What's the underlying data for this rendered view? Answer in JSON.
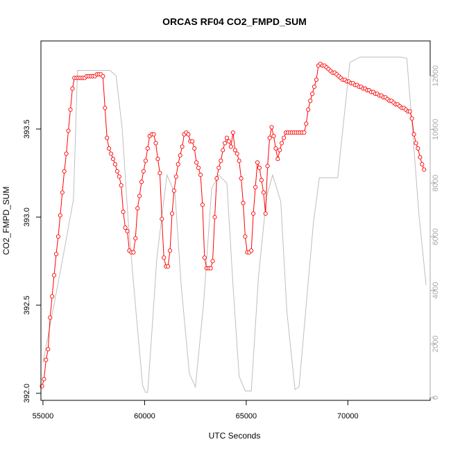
{
  "chart_data": {
    "type": "line",
    "title": "ORCAS RF04 CO2_FMPD_SUM",
    "xlabel": "UTC Seconds",
    "ylabel": "CO2_FMPD_SUM",
    "xlim": [
      54900,
      74050
    ],
    "ylim": [
      391.96,
      394.0
    ],
    "y2lim": [
      -100,
      13300
    ],
    "x_ticks": [
      55000,
      60000,
      65000,
      70000
    ],
    "x_tick_labels": [
      "55000",
      "60000",
      "65000",
      "70000"
    ],
    "y_ticks": [
      392.0,
      392.5,
      393.0,
      393.5
    ],
    "y_tick_labels": [
      "392.0",
      "392.5",
      "393.0",
      "393.5"
    ],
    "y2_ticks": [
      0,
      2000,
      4000,
      6000,
      8000,
      10000,
      12000
    ],
    "y2_tick_labels": [
      "0",
      "2000",
      "4000",
      "6000",
      "8000",
      "10000",
      "12000"
    ],
    "grid": false,
    "legend": "none",
    "colors": {
      "co2": "#ff0000",
      "altitude": "#bebebe",
      "axis": "#000000",
      "right_axis": "#a8a8a8"
    },
    "series": [
      {
        "role": "co2",
        "axis": "left",
        "style": "line+points",
        "points": [
          [
            54950,
            392.04
          ],
          [
            55050,
            392.08
          ],
          [
            55150,
            392.19
          ],
          [
            55250,
            392.25
          ],
          [
            55350,
            392.43
          ],
          [
            55450,
            392.55
          ],
          [
            55550,
            392.67
          ],
          [
            55650,
            392.79
          ],
          [
            55750,
            392.89
          ],
          [
            55850,
            393.01
          ],
          [
            55950,
            393.14
          ],
          [
            56050,
            393.26
          ],
          [
            56150,
            393.36
          ],
          [
            56250,
            393.49
          ],
          [
            56350,
            393.61
          ],
          [
            56450,
            393.73
          ],
          [
            56550,
            393.79
          ],
          [
            56650,
            393.79
          ],
          [
            56750,
            393.79
          ],
          [
            56850,
            393.79
          ],
          [
            56950,
            393.79
          ],
          [
            57050,
            393.79
          ],
          [
            57150,
            393.8
          ],
          [
            57250,
            393.8
          ],
          [
            57350,
            393.8
          ],
          [
            57450,
            393.8
          ],
          [
            57550,
            393.8
          ],
          [
            57650,
            393.81
          ],
          [
            57750,
            393.81
          ],
          [
            57850,
            393.81
          ],
          [
            57950,
            393.8
          ],
          [
            58050,
            393.62
          ],
          [
            58150,
            393.45
          ],
          [
            58250,
            393.39
          ],
          [
            58350,
            393.36
          ],
          [
            58450,
            393.33
          ],
          [
            58550,
            393.3
          ],
          [
            58650,
            393.26
          ],
          [
            58750,
            393.23
          ],
          [
            58850,
            393.18
          ],
          [
            58950,
            393.03
          ],
          [
            59050,
            392.94
          ],
          [
            59150,
            392.92
          ],
          [
            59250,
            392.81
          ],
          [
            59350,
            392.8
          ],
          [
            59450,
            392.8
          ],
          [
            59550,
            392.88
          ],
          [
            59650,
            393.05
          ],
          [
            59750,
            393.12
          ],
          [
            59850,
            393.2
          ],
          [
            59950,
            393.26
          ],
          [
            60050,
            393.32
          ],
          [
            60150,
            393.39
          ],
          [
            60250,
            393.46
          ],
          [
            60350,
            393.47
          ],
          [
            60450,
            393.47
          ],
          [
            60550,
            393.42
          ],
          [
            60650,
            393.33
          ],
          [
            60750,
            393.25
          ],
          [
            60850,
            392.99
          ],
          [
            60950,
            392.77
          ],
          [
            61050,
            392.72
          ],
          [
            61150,
            392.72
          ],
          [
            61250,
            392.81
          ],
          [
            61350,
            393.02
          ],
          [
            61450,
            393.15
          ],
          [
            61550,
            393.23
          ],
          [
            61650,
            393.3
          ],
          [
            61750,
            393.35
          ],
          [
            61850,
            393.4
          ],
          [
            61950,
            393.47
          ],
          [
            62050,
            393.48
          ],
          [
            62150,
            393.47
          ],
          [
            62250,
            393.43
          ],
          [
            62350,
            393.43
          ],
          [
            62450,
            393.39
          ],
          [
            62550,
            393.31
          ],
          [
            62650,
            393.28
          ],
          [
            62750,
            393.24
          ],
          [
            62850,
            393.07
          ],
          [
            62950,
            392.77
          ],
          [
            63050,
            392.71
          ],
          [
            63150,
            392.71
          ],
          [
            63250,
            392.71
          ],
          [
            63350,
            392.75
          ],
          [
            63450,
            393.0
          ],
          [
            63550,
            393.22
          ],
          [
            63650,
            393.28
          ],
          [
            63750,
            393.32
          ],
          [
            63850,
            393.38
          ],
          [
            63950,
            393.42
          ],
          [
            64050,
            393.45
          ],
          [
            64150,
            393.43
          ],
          [
            64250,
            393.4
          ],
          [
            64350,
            393.48
          ],
          [
            64450,
            393.38
          ],
          [
            64550,
            393.36
          ],
          [
            64650,
            393.32
          ],
          [
            64750,
            393.22
          ],
          [
            64850,
            393.08
          ],
          [
            64950,
            392.89
          ],
          [
            65050,
            392.8
          ],
          [
            65150,
            392.8
          ],
          [
            65250,
            392.81
          ],
          [
            65350,
            393.02
          ],
          [
            65450,
            393.17
          ],
          [
            65550,
            393.31
          ],
          [
            65650,
            393.28
          ],
          [
            65750,
            393.21
          ],
          [
            65850,
            393.14
          ],
          [
            65950,
            393.02
          ],
          [
            66050,
            393.29
          ],
          [
            66150,
            393.45
          ],
          [
            66250,
            393.51
          ],
          [
            66350,
            393.46
          ],
          [
            66450,
            393.39
          ],
          [
            66550,
            393.33
          ],
          [
            66650,
            393.38
          ],
          [
            66750,
            393.42
          ],
          [
            66850,
            393.45
          ],
          [
            66950,
            393.48
          ],
          [
            67050,
            393.48
          ],
          [
            67150,
            393.48
          ],
          [
            67250,
            393.48
          ],
          [
            67350,
            393.48
          ],
          [
            67450,
            393.48
          ],
          [
            67550,
            393.48
          ],
          [
            67650,
            393.48
          ],
          [
            67750,
            393.48
          ],
          [
            67850,
            393.48
          ],
          [
            67950,
            393.53
          ],
          [
            68050,
            393.61
          ],
          [
            68150,
            393.66
          ],
          [
            68250,
            393.7
          ],
          [
            68350,
            393.74
          ],
          [
            68450,
            393.78
          ],
          [
            68550,
            393.86
          ],
          [
            68650,
            393.87
          ],
          [
            68750,
            393.86
          ],
          [
            68850,
            393.86
          ],
          [
            68950,
            393.85
          ],
          [
            69050,
            393.84
          ],
          [
            69150,
            393.83
          ],
          [
            69250,
            393.82
          ],
          [
            69350,
            393.82
          ],
          [
            69450,
            393.81
          ],
          [
            69550,
            393.8
          ],
          [
            69650,
            393.79
          ],
          [
            69750,
            393.78
          ],
          [
            69850,
            393.78
          ],
          [
            69950,
            393.77
          ],
          [
            70050,
            393.77
          ],
          [
            70150,
            393.76
          ],
          [
            70250,
            393.76
          ],
          [
            70350,
            393.75
          ],
          [
            70450,
            393.75
          ],
          [
            70550,
            393.74
          ],
          [
            70650,
            393.74
          ],
          [
            70750,
            393.73
          ],
          [
            70850,
            393.73
          ],
          [
            70950,
            393.72
          ],
          [
            71050,
            393.72
          ],
          [
            71150,
            393.71
          ],
          [
            71250,
            393.71
          ],
          [
            71350,
            393.7
          ],
          [
            71450,
            393.7
          ],
          [
            71550,
            393.69
          ],
          [
            71650,
            393.69
          ],
          [
            71750,
            393.68
          ],
          [
            71850,
            393.68
          ],
          [
            71950,
            393.67
          ],
          [
            72050,
            393.66
          ],
          [
            72150,
            393.66
          ],
          [
            72250,
            393.65
          ],
          [
            72350,
            393.64
          ],
          [
            72450,
            393.64
          ],
          [
            72550,
            393.63
          ],
          [
            72650,
            393.62
          ],
          [
            72750,
            393.62
          ],
          [
            72850,
            393.61
          ],
          [
            72950,
            393.6
          ],
          [
            73050,
            393.6
          ],
          [
            73150,
            393.56
          ],
          [
            73250,
            393.47
          ],
          [
            73350,
            393.42
          ],
          [
            73450,
            393.39
          ],
          [
            73550,
            393.34
          ],
          [
            73650,
            393.3
          ],
          [
            73750,
            393.27
          ]
        ]
      },
      {
        "role": "altitude",
        "axis": "right",
        "style": "line",
        "points": [
          [
            55000,
            1300
          ],
          [
            55500,
            3300
          ],
          [
            56000,
            5300
          ],
          [
            56500,
            7400
          ],
          [
            56700,
            12200
          ],
          [
            57000,
            12200
          ],
          [
            57500,
            12200
          ],
          [
            58000,
            12200
          ],
          [
            58300,
            12200
          ],
          [
            58600,
            12000
          ],
          [
            58900,
            10000
          ],
          [
            59200,
            6500
          ],
          [
            59600,
            3000
          ],
          [
            59900,
            450
          ],
          [
            60050,
            200
          ],
          [
            60150,
            200
          ],
          [
            60300,
            1800
          ],
          [
            60600,
            5200
          ],
          [
            61100,
            8300
          ],
          [
            61500,
            7600
          ],
          [
            61800,
            4200
          ],
          [
            62200,
            900
          ],
          [
            62500,
            400
          ],
          [
            62900,
            3500
          ],
          [
            63300,
            7800
          ],
          [
            63650,
            8300
          ],
          [
            64050,
            8000
          ],
          [
            64350,
            4200
          ],
          [
            64650,
            800
          ],
          [
            64950,
            250
          ],
          [
            65250,
            250
          ],
          [
            65600,
            4500
          ],
          [
            66000,
            7500
          ],
          [
            66300,
            8300
          ],
          [
            66700,
            7300
          ],
          [
            67000,
            3200
          ],
          [
            67400,
            300
          ],
          [
            67600,
            400
          ],
          [
            67900,
            3000
          ],
          [
            68300,
            6500
          ],
          [
            68600,
            8200
          ],
          [
            69500,
            8200
          ],
          [
            70100,
            12500
          ],
          [
            70600,
            12700
          ],
          [
            72200,
            12700
          ],
          [
            72600,
            12700
          ],
          [
            72900,
            12650
          ],
          [
            73200,
            9800
          ],
          [
            73500,
            6800
          ],
          [
            73850,
            4200
          ]
        ]
      }
    ]
  }
}
